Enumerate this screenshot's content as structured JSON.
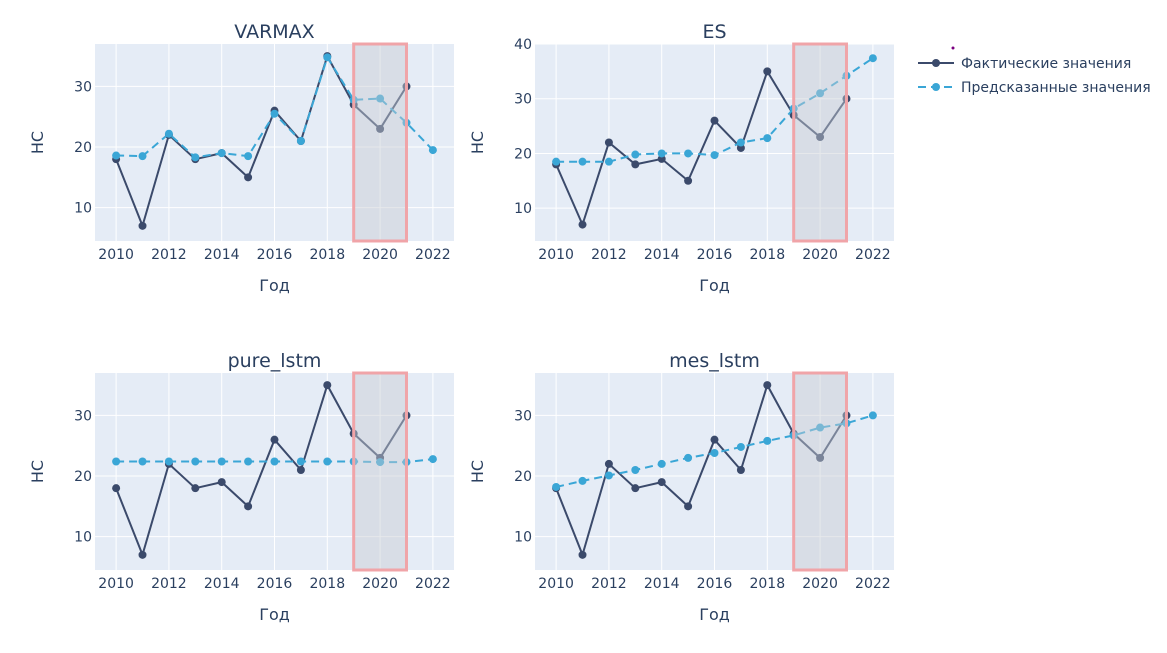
{
  "colors": {
    "plot_bg": "#e5ecf6",
    "grid": "#ffffff",
    "actual": "#3b4a6b",
    "predicted": "#3aa6d6",
    "highlight_fill": "#c8ccd2",
    "highlight_border": "#f0a4a8",
    "text": "#2a3f5f"
  },
  "legend": {
    "actual_label": "Фактические значения",
    "predicted_label": "Предсказанные значения"
  },
  "chart_data": [
    {
      "type": "line",
      "title": "VARMAX",
      "xlabel": "Год",
      "ylabel": "НС",
      "xlim": [
        2009.2,
        2022.8
      ],
      "ylim": [
        4.5,
        37.0
      ],
      "xticks": [
        2010,
        2012,
        2014,
        2016,
        2018,
        2020,
        2022
      ],
      "yticks": [
        10,
        20,
        30
      ],
      "highlight_x": [
        2019,
        2021
      ],
      "series": [
        {
          "name": "Фактические значения",
          "x": [
            2010,
            2011,
            2012,
            2013,
            2014,
            2015,
            2016,
            2017,
            2018,
            2019,
            2020,
            2021
          ],
          "values": [
            18,
            7,
            22,
            18,
            19,
            15,
            26,
            21,
            35,
            27,
            23,
            30
          ]
        },
        {
          "name": "Предсказанные значения",
          "x": [
            2010,
            2011,
            2012,
            2013,
            2014,
            2015,
            2016,
            2017,
            2018,
            2019,
            2020,
            2021,
            2022
          ],
          "values": [
            18.6,
            18.5,
            22.2,
            18.3,
            19.0,
            18.5,
            25.5,
            21.0,
            34.8,
            27.8,
            28.0,
            24.0,
            19.5
          ]
        }
      ]
    },
    {
      "type": "line",
      "title": "ES",
      "xlabel": "Год",
      "ylabel": "НС",
      "xlim": [
        2009.2,
        2022.8
      ],
      "ylim": [
        4.0,
        40.0
      ],
      "xticks": [
        2010,
        2012,
        2014,
        2016,
        2018,
        2020,
        2022
      ],
      "yticks": [
        10,
        20,
        30,
        40
      ],
      "highlight_x": [
        2019,
        2021
      ],
      "series": [
        {
          "name": "Фактические значения",
          "x": [
            2010,
            2011,
            2012,
            2013,
            2014,
            2015,
            2016,
            2017,
            2018,
            2019,
            2020,
            2021
          ],
          "values": [
            18,
            7,
            22,
            18,
            19,
            15,
            26,
            21,
            35,
            27,
            23,
            30
          ]
        },
        {
          "name": "Предсказанные значения",
          "x": [
            2010,
            2011,
            2012,
            2013,
            2014,
            2015,
            2016,
            2017,
            2018,
            2019,
            2020,
            2021,
            2022
          ],
          "values": [
            18.5,
            18.5,
            18.5,
            19.8,
            20.0,
            20.0,
            19.7,
            22.0,
            22.8,
            28.2,
            31.0,
            34.2,
            37.4
          ]
        }
      ]
    },
    {
      "type": "line",
      "title": "pure_lstm",
      "xlabel": "Год",
      "ylabel": "НС",
      "xlim": [
        2009.2,
        2022.8
      ],
      "ylim": [
        4.5,
        37.0
      ],
      "xticks": [
        2010,
        2012,
        2014,
        2016,
        2018,
        2020,
        2022
      ],
      "yticks": [
        10,
        20,
        30
      ],
      "highlight_x": [
        2019,
        2021
      ],
      "series": [
        {
          "name": "Фактические значения",
          "x": [
            2010,
            2011,
            2012,
            2013,
            2014,
            2015,
            2016,
            2017,
            2018,
            2019,
            2020,
            2021
          ],
          "values": [
            18,
            7,
            22,
            18,
            19,
            15,
            26,
            21,
            35,
            27,
            23,
            30
          ]
        },
        {
          "name": "Предсказанные значения",
          "x": [
            2010,
            2011,
            2012,
            2013,
            2014,
            2015,
            2016,
            2017,
            2018,
            2019,
            2020,
            2021,
            2022
          ],
          "values": [
            22.4,
            22.4,
            22.4,
            22.4,
            22.4,
            22.4,
            22.4,
            22.4,
            22.4,
            22.4,
            22.3,
            22.3,
            22.8
          ]
        }
      ]
    },
    {
      "type": "line",
      "title": "mes_lstm",
      "xlabel": "Год",
      "ylabel": "НС",
      "xlim": [
        2009.2,
        2022.8
      ],
      "ylim": [
        4.5,
        37.0
      ],
      "xticks": [
        2010,
        2012,
        2014,
        2016,
        2018,
        2020,
        2022
      ],
      "yticks": [
        10,
        20,
        30
      ],
      "highlight_x": [
        2019,
        2021
      ],
      "series": [
        {
          "name": "Фактические значения",
          "x": [
            2010,
            2011,
            2012,
            2013,
            2014,
            2015,
            2016,
            2017,
            2018,
            2019,
            2020,
            2021
          ],
          "values": [
            18,
            7,
            22,
            18,
            19,
            15,
            26,
            21,
            35,
            27,
            23,
            30
          ]
        },
        {
          "name": "Предсказанные значения",
          "x": [
            2010,
            2011,
            2012,
            2013,
            2014,
            2015,
            2016,
            2017,
            2018,
            2019,
            2020,
            2021,
            2022
          ],
          "values": [
            18.2,
            19.2,
            20.1,
            21.0,
            22.0,
            23.0,
            23.8,
            24.8,
            25.8,
            26.7,
            28.0,
            28.7,
            30.0
          ]
        }
      ]
    }
  ]
}
